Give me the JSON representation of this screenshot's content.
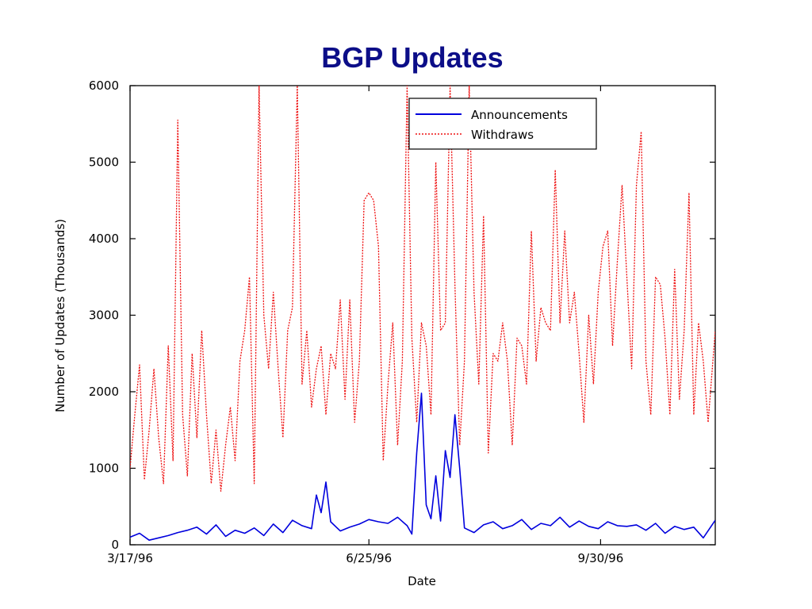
{
  "chart_data": {
    "type": "line",
    "title": "BGP Updates",
    "xlabel": "Date",
    "ylabel": "Number of Updates (Thousands)",
    "ylim": [
      0,
      6000
    ],
    "yticks": [
      0,
      1000,
      2000,
      3000,
      4000,
      5000,
      6000
    ],
    "xlim": [
      "1996-03-17",
      "1996-11-17"
    ],
    "xticks": [
      {
        "label": "3/17/96",
        "date": "1996-03-17"
      },
      {
        "label": "6/25/96",
        "date": "1996-06-25"
      },
      {
        "label": "9/30/96",
        "date": "1996-09-30"
      }
    ],
    "legend_position": "top-right",
    "series": [
      {
        "name": "Announcements",
        "color": "#0000dd",
        "style": "solid",
        "x": [
          "1996-03-17",
          "1996-03-21",
          "1996-03-25",
          "1996-03-29",
          "1996-04-02",
          "1996-04-06",
          "1996-04-10",
          "1996-04-14",
          "1996-04-18",
          "1996-04-22",
          "1996-04-26",
          "1996-04-30",
          "1996-05-04",
          "1996-05-08",
          "1996-05-12",
          "1996-05-16",
          "1996-05-20",
          "1996-05-24",
          "1996-05-28",
          "1996-06-01",
          "1996-06-03",
          "1996-06-05",
          "1996-06-07",
          "1996-06-09",
          "1996-06-13",
          "1996-06-17",
          "1996-06-21",
          "1996-06-25",
          "1996-06-29",
          "1996-07-03",
          "1996-07-07",
          "1996-07-11",
          "1996-07-13",
          "1996-07-15",
          "1996-07-17",
          "1996-07-19",
          "1996-07-21",
          "1996-07-23",
          "1996-07-25",
          "1996-07-27",
          "1996-07-29",
          "1996-07-31",
          "1996-08-02",
          "1996-08-04",
          "1996-08-08",
          "1996-08-12",
          "1996-08-16",
          "1996-08-20",
          "1996-08-24",
          "1996-08-28",
          "1996-09-01",
          "1996-09-05",
          "1996-09-09",
          "1996-09-13",
          "1996-09-17",
          "1996-09-21",
          "1996-09-25",
          "1996-09-29",
          "1996-10-03",
          "1996-10-07",
          "1996-10-11",
          "1996-10-15",
          "1996-10-19",
          "1996-10-23",
          "1996-10-27",
          "1996-10-31",
          "1996-11-04",
          "1996-11-08",
          "1996-11-12",
          "1996-11-17"
        ],
        "y": [
          100,
          150,
          60,
          90,
          120,
          160,
          190,
          230,
          140,
          260,
          110,
          190,
          150,
          220,
          120,
          270,
          160,
          320,
          250,
          210,
          650,
          420,
          820,
          300,
          180,
          230,
          270,
          330,
          300,
          280,
          360,
          250,
          140,
          1200,
          1980,
          520,
          340,
          900,
          310,
          1230,
          880,
          1700,
          1000,
          220,
          160,
          260,
          300,
          210,
          250,
          330,
          200,
          280,
          250,
          360,
          230,
          310,
          240,
          210,
          300,
          250,
          240,
          260,
          190,
          280,
          150,
          240,
          200,
          230,
          90,
          320
        ]
      },
      {
        "name": "Withdraws",
        "color": "#ee1111",
        "style": "dotted",
        "x": [
          "1996-03-17",
          "1996-03-19",
          "1996-03-21",
          "1996-03-23",
          "1996-03-25",
          "1996-03-27",
          "1996-03-29",
          "1996-03-31",
          "1996-04-02",
          "1996-04-04",
          "1996-04-06",
          "1996-04-08",
          "1996-04-10",
          "1996-04-12",
          "1996-04-14",
          "1996-04-16",
          "1996-04-18",
          "1996-04-20",
          "1996-04-22",
          "1996-04-24",
          "1996-04-26",
          "1996-04-28",
          "1996-04-30",
          "1996-05-02",
          "1996-05-04",
          "1996-05-06",
          "1996-05-08",
          "1996-05-10",
          "1996-05-12",
          "1996-05-14",
          "1996-05-16",
          "1996-05-18",
          "1996-05-20",
          "1996-05-22",
          "1996-05-24",
          "1996-05-26",
          "1996-05-28",
          "1996-05-30",
          "1996-06-01",
          "1996-06-03",
          "1996-06-05",
          "1996-06-07",
          "1996-06-09",
          "1996-06-11",
          "1996-06-13",
          "1996-06-15",
          "1996-06-17",
          "1996-06-19",
          "1996-06-21",
          "1996-06-23",
          "1996-06-25",
          "1996-06-27",
          "1996-06-29",
          "1996-07-01",
          "1996-07-03",
          "1996-07-05",
          "1996-07-07",
          "1996-07-09",
          "1996-07-11",
          "1996-07-13",
          "1996-07-15",
          "1996-07-17",
          "1996-07-19",
          "1996-07-21",
          "1996-07-23",
          "1996-07-25",
          "1996-07-27",
          "1996-07-29",
          "1996-07-31",
          "1996-08-02",
          "1996-08-04",
          "1996-08-06",
          "1996-08-08",
          "1996-08-10",
          "1996-08-12",
          "1996-08-14",
          "1996-08-16",
          "1996-08-18",
          "1996-08-20",
          "1996-08-22",
          "1996-08-24",
          "1996-08-26",
          "1996-08-28",
          "1996-08-30",
          "1996-09-01",
          "1996-09-03",
          "1996-09-05",
          "1996-09-07",
          "1996-09-09",
          "1996-09-11",
          "1996-09-13",
          "1996-09-15",
          "1996-09-17",
          "1996-09-19",
          "1996-09-21",
          "1996-09-23",
          "1996-09-25",
          "1996-09-27",
          "1996-09-29",
          "1996-10-01",
          "1996-10-03",
          "1996-10-05",
          "1996-10-07",
          "1996-10-09",
          "1996-10-11",
          "1996-10-13",
          "1996-10-15",
          "1996-10-17",
          "1996-10-19",
          "1996-10-21",
          "1996-10-23",
          "1996-10-25",
          "1996-10-27",
          "1996-10-29",
          "1996-10-31",
          "1996-11-02",
          "1996-11-04",
          "1996-11-06",
          "1996-11-08",
          "1996-11-10",
          "1996-11-12",
          "1996-11-14",
          "1996-11-17"
        ],
        "y": [
          1000,
          1700,
          2350,
          850,
          1500,
          2300,
          1400,
          800,
          2600,
          1100,
          5550,
          1700,
          900,
          2500,
          1400,
          2800,
          1700,
          800,
          1500,
          700,
          1300,
          1800,
          1100,
          2400,
          2800,
          3500,
          800,
          6000,
          3000,
          2300,
          3300,
          2300,
          1400,
          2800,
          3100,
          6000,
          2100,
          2800,
          1800,
          2300,
          2600,
          1700,
          2500,
          2300,
          3200,
          1900,
          3200,
          1600,
          2400,
          4500,
          4600,
          4500,
          3900,
          1100,
          2100,
          2900,
          1300,
          2400,
          6000,
          2700,
          1600,
          2900,
          2600,
          1700,
          5000,
          2800,
          2900,
          6000,
          3400,
          1300,
          2400,
          6000,
          3300,
          2100,
          4300,
          1200,
          2500,
          2400,
          2900,
          2400,
          1300,
          2700,
          2600,
          2100,
          4100,
          2400,
          3100,
          2900,
          2800,
          4900,
          2900,
          4100,
          2900,
          3300,
          2500,
          1600,
          3000,
          2100,
          3300,
          3900,
          4100,
          2600,
          3700,
          4700,
          3500,
          2300,
          4700,
          5400,
          2400,
          1700,
          3500,
          3400,
          2700,
          1700,
          3600,
          1900,
          2800,
          4600,
          1700,
          2900,
          2400,
          1600,
          2800
        ]
      }
    ]
  }
}
